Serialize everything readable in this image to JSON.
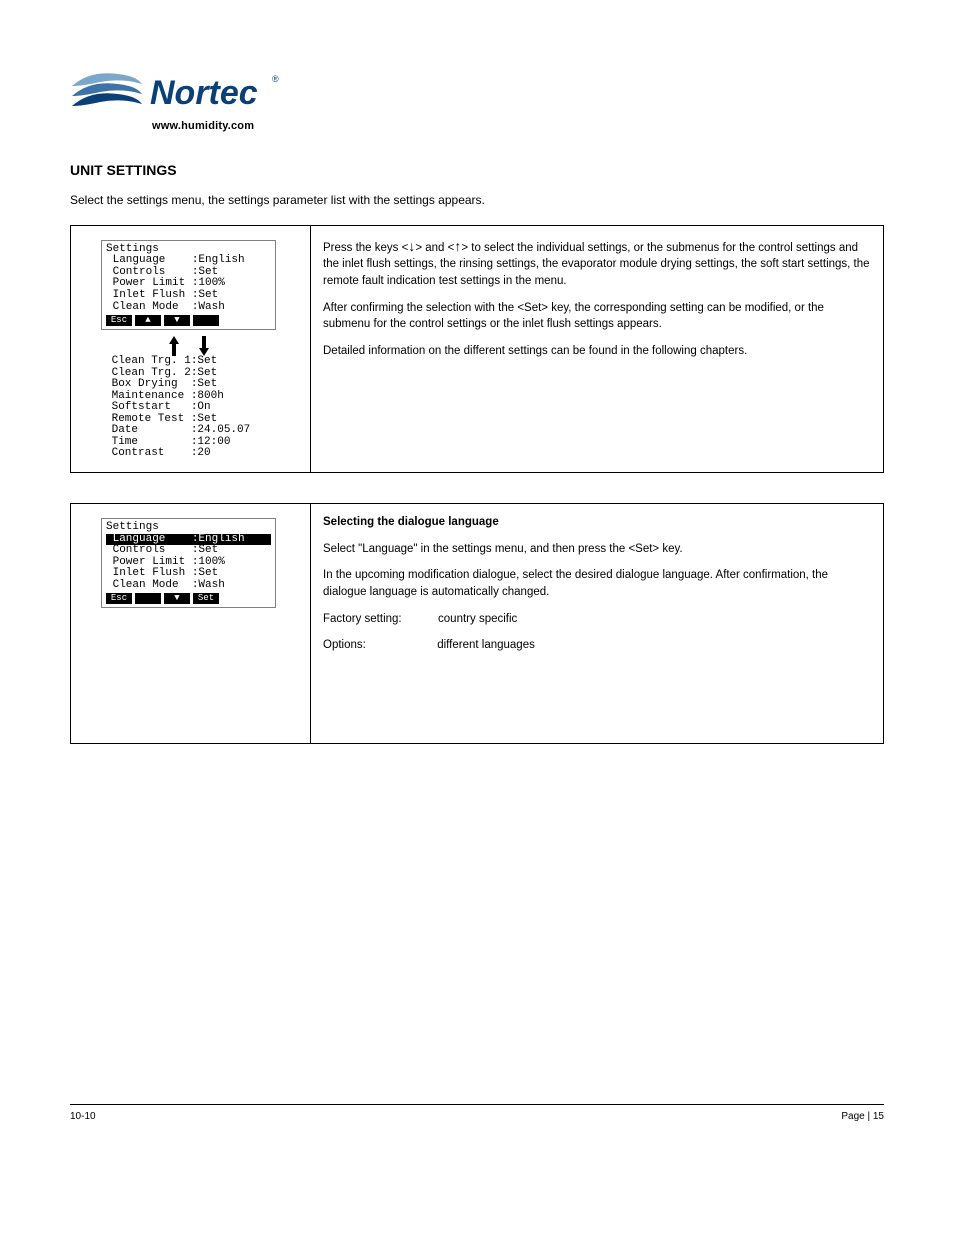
{
  "logo": {
    "brand": "Nortec",
    "url": "www.humidity.com",
    "wave_color_1": "#5b8fb9",
    "wave_color_2": "#2c5f8d",
    "wave_color_3": "#104a82",
    "text_color": "#0b3f77"
  },
  "section": {
    "title": "UNIT SETTINGS",
    "intro": "Select the settings menu, the settings parameter list with the settings appears."
  },
  "panel1": {
    "desc1_pre": "Press the keys <",
    "desc1_mid": "> and <",
    "desc1_post": "> to select the individual settings, or the submenus for the control settings and the inlet flush settings, the rinsing settings, the evaporator module drying settings, the soft start settings, the remote fault indication test settings in the menu.",
    "desc2": "After confirming the selection with the <Set> key, the corresponding setting can be modified, or the submenu for the control settings or the inlet flush settings appears.",
    "desc3": "Detailed information on the different settings can be found in the following chapters.",
    "lcd": {
      "title": "Settings",
      "rows_top": [
        {
          "label": "Language",
          "value": "English"
        },
        {
          "label": "Controls",
          "value": "Set"
        },
        {
          "label": "Power Limit",
          "value": "100%"
        },
        {
          "label": "Inlet Flush",
          "value": "Set"
        },
        {
          "label": "Clean Mode",
          "value": "Wash"
        }
      ],
      "nav": [
        "Esc",
        "▲",
        "▼",
        ""
      ],
      "rows_bottom": [
        {
          "label": "Clean Trg. 1",
          "value": "Set"
        },
        {
          "label": "Clean Trg. 2",
          "value": "Set"
        },
        {
          "label": "Box Drying",
          "value": "Set"
        },
        {
          "label": "Maintenance",
          "value": "800h"
        },
        {
          "label": "Softstart",
          "value": "On"
        },
        {
          "label": "Remote Test",
          "value": "Set"
        },
        {
          "label": "Date",
          "value": "24.05.07"
        },
        {
          "label": "Time",
          "value": "12:00"
        },
        {
          "label": "Contrast",
          "value": "20"
        }
      ]
    }
  },
  "panel2": {
    "heading": "Selecting the dialogue language",
    "desc1": "Select \"Language\" in the settings menu, and then press the <Set> key.",
    "desc2": "In the upcoming modification dialogue, select the desired dialogue language. After confirmation, the dialogue language is automatically changed.",
    "factory_label": "Factory setting:",
    "factory_value": "country specific",
    "options_label": "Options:",
    "options_value": "different languages",
    "lcd": {
      "title": "Settings",
      "highlight_index": 0,
      "rows": [
        {
          "label": "Language",
          "value": "English"
        },
        {
          "label": "Controls",
          "value": "Set"
        },
        {
          "label": "Power Limit",
          "value": "100%"
        },
        {
          "label": "Inlet Flush",
          "value": "Set"
        },
        {
          "label": "Clean Mode",
          "value": "Wash"
        }
      ],
      "nav": [
        "Esc",
        "",
        "▼",
        "Set"
      ]
    }
  },
  "footer": {
    "left": "10-10",
    "right": "Page | 15"
  }
}
